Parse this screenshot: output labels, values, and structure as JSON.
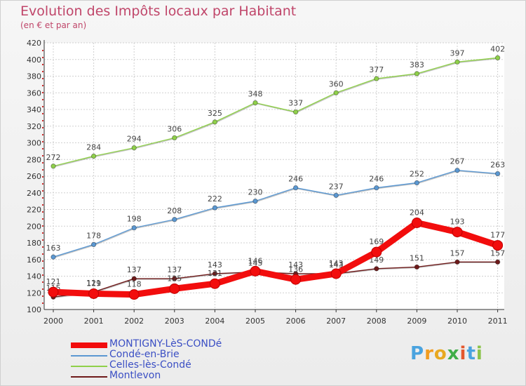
{
  "chart_data": {
    "type": "line",
    "title": "Evolution des Impôts locaux par Habitant",
    "subtitle": "(en € et par an)",
    "x": [
      "2000",
      "2001",
      "2002",
      "2003",
      "2004",
      "2005",
      "2006",
      "2007",
      "2008",
      "2009",
      "2010",
      "2011"
    ],
    "ylim": [
      100,
      420
    ],
    "yticks": [
      100,
      120,
      140,
      160,
      180,
      200,
      220,
      240,
      260,
      280,
      300,
      320,
      340,
      360,
      380,
      400,
      420
    ],
    "grid": true,
    "legend_position": "bottom-left",
    "series": [
      {
        "name": "Celles-lès-Condé",
        "color": "#8fd04a",
        "values": [
          272,
          284,
          294,
          306,
          325,
          348,
          337,
          360,
          377,
          383,
          397,
          402
        ]
      },
      {
        "name": "Condé-en-Brie",
        "color": "#5b98d2",
        "values": [
          163,
          178,
          198,
          208,
          222,
          230,
          246,
          237,
          246,
          252,
          267,
          263
        ]
      },
      {
        "name": "Montlevon",
        "color": "#6e1a1a",
        "values": [
          115,
          121,
          137,
          137,
          143,
          145,
          143,
          143,
          149,
          151,
          157,
          157
        ]
      },
      {
        "name": "MONTIGNY-LèS-CONDé",
        "color": "#f20d0d",
        "values": [
          121,
          119,
          118,
          125,
          131,
          146,
          136,
          143,
          169,
          204,
          193,
          177
        ]
      }
    ],
    "legend_order": [
      "MONTIGNY-LèS-CONDé",
      "Condé-en-Brie",
      "Celles-lès-Condé",
      "Montlevon"
    ]
  },
  "logo": {
    "letters": [
      "P",
      "r",
      "o",
      "x",
      "i",
      "t",
      "i"
    ],
    "colors": [
      "#4aa3df",
      "#f29c1f",
      "#e8a820",
      "#3fae49",
      "#e4572e",
      "#4aa3df",
      "#8bc34a"
    ]
  }
}
